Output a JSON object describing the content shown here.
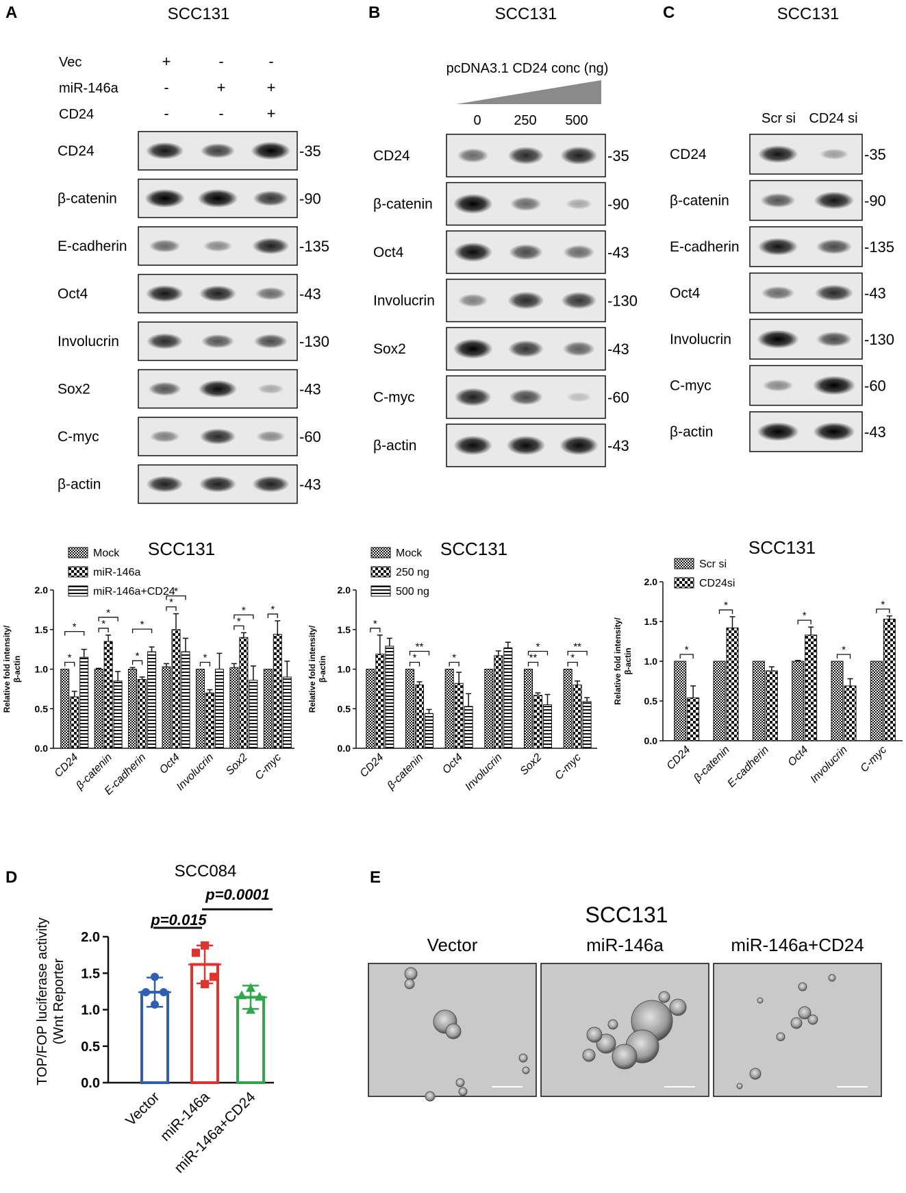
{
  "panelA": {
    "letter": "A",
    "title": "SCC131",
    "treatments": [
      {
        "label": "Vec",
        "marks": [
          "+",
          "-",
          "-"
        ]
      },
      {
        "label": "miR-146a",
        "marks": [
          "-",
          "+",
          "+"
        ]
      },
      {
        "label": "CD24",
        "marks": [
          "-",
          "-",
          "+"
        ]
      }
    ],
    "blots": [
      {
        "protein": "CD24",
        "kda": "-35",
        "bands": [
          0.85,
          0.65,
          0.95
        ]
      },
      {
        "protein": "β-catenin",
        "kda": "-90",
        "bands": [
          1.0,
          1.0,
          0.7
        ]
      },
      {
        "protein": "E-cadherin",
        "kda": "-135",
        "bands": [
          0.45,
          0.3,
          0.8
        ]
      },
      {
        "protein": "Oct4",
        "kda": "-43",
        "bands": [
          0.85,
          0.8,
          0.45
        ]
      },
      {
        "protein": "Involucrin",
        "kda": "-130",
        "bands": [
          0.75,
          0.55,
          0.6
        ]
      },
      {
        "protein": "Sox2",
        "kda": "-43",
        "bands": [
          0.55,
          0.9,
          0.15
        ]
      },
      {
        "protein": "C-myc",
        "kda": "-60",
        "bands": [
          0.35,
          0.75,
          0.3
        ]
      },
      {
        "protein": "β-actin",
        "kda": "-43",
        "bands": [
          0.8,
          0.8,
          0.8
        ]
      }
    ]
  },
  "panelB": {
    "letter": "B",
    "title": "SCC131",
    "conc_label": "pcDNA3.1 CD24 conc (ng)",
    "doses": [
      "0",
      "250",
      "500"
    ],
    "blots": [
      {
        "protein": "CD24",
        "kda": "-35",
        "bands": [
          0.45,
          0.75,
          0.8
        ]
      },
      {
        "protein": "β-catenin",
        "kda": "-90",
        "bands": [
          0.95,
          0.45,
          0.15
        ]
      },
      {
        "protein": "Oct4",
        "kda": "-43",
        "bands": [
          0.9,
          0.6,
          0.45
        ]
      },
      {
        "protein": "Involucrin",
        "kda": "-130",
        "bands": [
          0.35,
          0.75,
          0.7
        ]
      },
      {
        "protein": "Sox2",
        "kda": "-43",
        "bands": [
          0.95,
          0.7,
          0.5
        ]
      },
      {
        "protein": "C-myc",
        "kda": "-60",
        "bands": [
          0.8,
          0.6,
          0.05
        ]
      },
      {
        "protein": "β-actin",
        "kda": "-43",
        "bands": [
          0.9,
          0.9,
          0.9
        ]
      }
    ]
  },
  "panelC": {
    "letter": "C",
    "title": "SCC131",
    "lanes": [
      "Scr si",
      "CD24 si"
    ],
    "blots": [
      {
        "protein": "CD24",
        "kda": "-35",
        "bands": [
          0.85,
          0.2
        ]
      },
      {
        "protein": "β-catenin",
        "kda": "-90",
        "bands": [
          0.55,
          0.85
        ]
      },
      {
        "protein": "E-cadherin",
        "kda": "-135",
        "bands": [
          0.85,
          0.6
        ]
      },
      {
        "protein": "Oct4",
        "kda": "-43",
        "bands": [
          0.45,
          0.75
        ]
      },
      {
        "protein": "Involucrin",
        "kda": "-130",
        "bands": [
          0.95,
          0.6
        ]
      },
      {
        "protein": "C-myc",
        "kda": "-60",
        "bands": [
          0.3,
          1.0
        ]
      },
      {
        "protein": "β-actin",
        "kda": "-43",
        "bands": [
          0.95,
          0.95
        ]
      }
    ]
  },
  "panelD_letter": "D",
  "panelE": {
    "letter": "E",
    "title": "SCC131",
    "images": [
      "Vector",
      "miR-146a",
      "miR-146a+CD24"
    ]
  },
  "chart_data": [
    {
      "type": "bar",
      "panel": "A",
      "title": "SCC131",
      "ylabel": "Relative fold intensity/\nβ-actin",
      "ylim": [
        0,
        2.0
      ],
      "yticks": [
        "0.0",
        "0.5",
        "1.0",
        "1.5",
        "2.0"
      ],
      "categories": [
        "CD24",
        "β-catenin",
        "E-cadherin",
        "Oct4",
        "Involucrin",
        "Sox2",
        "C-myc"
      ],
      "series": [
        {
          "name": "Mock",
          "values": [
            1.0,
            1.0,
            1.0,
            1.03,
            1.0,
            1.02,
            1.0
          ],
          "errors": [
            0.0,
            0.01,
            0.02,
            0.04,
            0.0,
            0.05,
            0.0
          ]
        },
        {
          "name": "miR-146a",
          "values": [
            0.65,
            1.35,
            0.87,
            1.5,
            0.7,
            1.4,
            1.44
          ],
          "errors": [
            0.07,
            0.08,
            0.03,
            0.2,
            0.04,
            0.06,
            0.17
          ]
        },
        {
          "name": "miR-146a+CD24",
          "values": [
            1.15,
            0.85,
            1.22,
            1.22,
            1.0,
            0.86,
            0.9
          ],
          "errors": [
            0.1,
            0.12,
            0.06,
            0.17,
            0.2,
            0.18,
            0.2
          ]
        }
      ],
      "significance": [
        [
          "CD24",
          "*",
          "*"
        ],
        [
          "β-catenin",
          "*",
          "*"
        ],
        [
          "E-cadherin",
          "*",
          "*"
        ],
        [
          "Oct4",
          "*",
          "*"
        ],
        [
          "Involucrin",
          "*",
          ""
        ],
        [
          "Sox2",
          "*",
          "*"
        ],
        [
          "C-myc",
          "*",
          ""
        ]
      ]
    },
    {
      "type": "bar",
      "panel": "B",
      "title": "SCC131",
      "ylabel": "Relative fold intensity/\nβ-actin",
      "ylim": [
        0,
        2.0
      ],
      "yticks": [
        "0.0",
        "0.5",
        "1.0",
        "1.5",
        "2.0"
      ],
      "categories": [
        "CD24",
        "β-catenin",
        "Oct4",
        "Involucrin",
        "Sox2",
        "C-myc"
      ],
      "series": [
        {
          "name": "Mock",
          "values": [
            1.0,
            1.0,
            1.0,
            1.0,
            1.0,
            1.0
          ],
          "errors": [
            0.0,
            0.0,
            0.0,
            0.0,
            0.0,
            0.0
          ]
        },
        {
          "name": "250 ng",
          "values": [
            1.19,
            0.8,
            0.82,
            1.17,
            0.67,
            0.8
          ],
          "errors": [
            0.24,
            0.04,
            0.14,
            0.06,
            0.03,
            0.05
          ]
        },
        {
          "name": "500 ng",
          "values": [
            1.29,
            0.44,
            0.53,
            1.27,
            0.55,
            0.59
          ],
          "errors": [
            0.1,
            0.05,
            0.16,
            0.07,
            0.13,
            0.05
          ]
        }
      ],
      "significance": [
        [
          "CD24",
          "*",
          ""
        ],
        [
          "β-catenin",
          "*",
          "**"
        ],
        [
          "Oct4",
          "*",
          ""
        ],
        [
          "Sox2",
          "**",
          "*"
        ],
        [
          "C-myc",
          "*",
          "**"
        ]
      ]
    },
    {
      "type": "bar",
      "panel": "C",
      "title": "SCC131",
      "ylabel": "Relative fold intensity/\nβ-actin",
      "ylim": [
        0,
        2.0
      ],
      "yticks": [
        "0.0",
        "0.5",
        "1.0",
        "1.5",
        "2.0"
      ],
      "categories": [
        "CD24",
        "β-catenin",
        "E-cadherin",
        "Oct4",
        "Involucrin",
        "C-myc"
      ],
      "series": [
        {
          "name": "Scr si",
          "values": [
            1.0,
            1.0,
            1.0,
            1.0,
            1.0,
            1.0
          ],
          "errors": [
            0.0,
            0.0,
            0.0,
            0.01,
            0.0,
            0.0
          ]
        },
        {
          "name": "CD24si",
          "values": [
            0.54,
            1.42,
            0.88,
            1.33,
            0.69,
            1.53
          ],
          "errors": [
            0.15,
            0.14,
            0.05,
            0.1,
            0.09,
            0.04
          ]
        }
      ],
      "significance": [
        [
          "CD24",
          "*"
        ],
        [
          "β-catenin",
          "*"
        ],
        [
          "Oct4",
          "*"
        ],
        [
          "Involucrin",
          "*"
        ],
        [
          "C-myc",
          "*"
        ]
      ]
    },
    {
      "type": "bar",
      "panel": "D",
      "title": "SCC084",
      "ylabel": "TOP/FOP luciferase activity\n(Wnt Reporter",
      "ylim": [
        0,
        2.0
      ],
      "yticks": [
        "0.0",
        "0.5",
        "1.0",
        "1.5",
        "2.0"
      ],
      "categories": [
        "Vector",
        "miR-146a",
        "miR-146a+CD24"
      ],
      "values": [
        1.24,
        1.62,
        1.17
      ],
      "errors": [
        0.2,
        0.26,
        0.16
      ],
      "colors": [
        "#2f5fb3",
        "#e0332e",
        "#2ea84a"
      ],
      "points": [
        [
          1.45,
          1.24,
          1.24,
          1.07
        ],
        [
          1.88,
          1.78,
          1.45,
          1.35
        ],
        [
          1.3,
          1.2,
          1.18,
          1.0
        ]
      ],
      "annotations": [
        "p=0.015",
        "p=0.0001"
      ]
    }
  ]
}
